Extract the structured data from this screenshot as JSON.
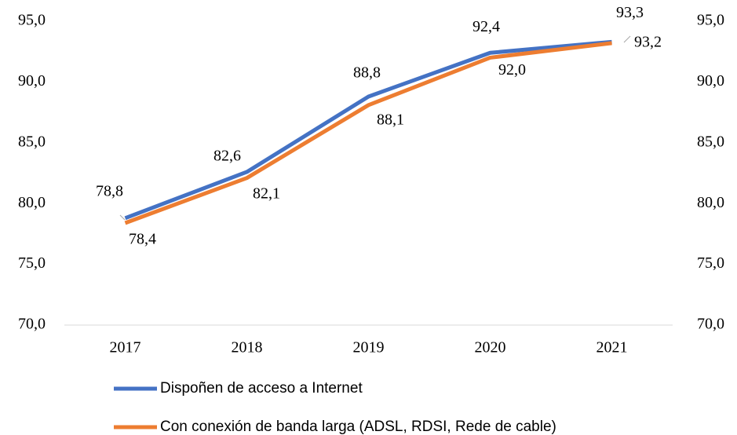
{
  "chart_data": {
    "type": "line",
    "categories": [
      "2017",
      "2018",
      "2019",
      "2020",
      "2021"
    ],
    "series": [
      {
        "name": "Dispoñen de acceso a Internet",
        "color": "#4472c4",
        "values": [
          78.8,
          82.6,
          88.8,
          92.4,
          93.3
        ],
        "value_labels": [
          "78,8",
          "82,6",
          "88,8",
          "92,4",
          "93,3"
        ]
      },
      {
        "name": "Con conexión de banda larga (ADSL, RDSI, Rede de cable)",
        "color": "#ed7d31",
        "values": [
          78.4,
          82.1,
          88.1,
          92.0,
          93.2
        ],
        "value_labels": [
          "78,4",
          "82,1",
          "88,1",
          "92,0",
          "93,2"
        ]
      }
    ],
    "ylim": [
      70,
      95
    ],
    "yticks": [
      {
        "value": 70,
        "label": "70,0"
      },
      {
        "value": 75,
        "label": "75,0"
      },
      {
        "value": 80,
        "label": "80,0"
      },
      {
        "value": 85,
        "label": "85,0"
      },
      {
        "value": 90,
        "label": "90,0"
      },
      {
        "value": 95,
        "label": "95,0"
      }
    ],
    "y2lim": [
      70,
      95
    ],
    "y2ticks": [
      {
        "value": 70,
        "label": "70,0"
      },
      {
        "value": 75,
        "label": "75,0"
      },
      {
        "value": 80,
        "label": "80,0"
      },
      {
        "value": 85,
        "label": "85,0"
      },
      {
        "value": 90,
        "label": "90,0"
      },
      {
        "value": 95,
        "label": "95,0"
      }
    ],
    "grid": false
  }
}
